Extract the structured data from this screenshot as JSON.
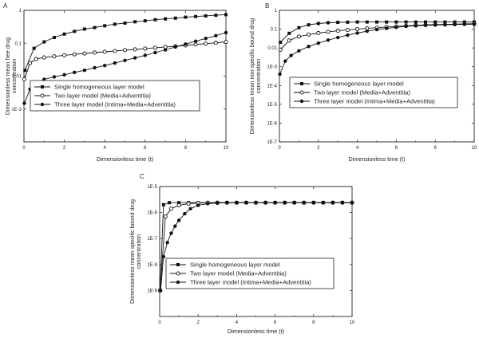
{
  "figure": {
    "panels": [
      "A",
      "B",
      "C"
    ],
    "colors": {
      "axis": "#222222",
      "series": "#111111",
      "marker_open_fill": "#ffffff",
      "background": "#ffffff"
    }
  },
  "chart_data": [
    {
      "type": "line",
      "panel": "A",
      "xlabel": "Dimensionless time (t)",
      "ylabel": [
        "Dimensionless mean free drug",
        "concentration"
      ],
      "xlim": [
        0,
        10
      ],
      "ylim": [
        0.0001,
        1
      ],
      "yscale": "log",
      "x_ticks": [
        0,
        2,
        4,
        6,
        8,
        10
      ],
      "y_ticks": [
        {
          "value": 1,
          "label": "1"
        },
        {
          "value": 0.1,
          "label": "0.1"
        },
        {
          "value": 0.01,
          "label": "0.01"
        },
        {
          "value": 0.001,
          "label": "1E-3"
        }
      ],
      "legend": {
        "position": "middle-left"
      },
      "series": [
        {
          "name": "Single homogeneous layer model",
          "marker": "square-filled",
          "x": [
            0.05,
            0.5,
            1,
            1.5,
            2,
            2.5,
            3,
            3.5,
            4,
            4.5,
            5,
            5.5,
            6,
            6.5,
            7,
            7.5,
            8,
            8.5,
            9,
            9.5,
            10
          ],
          "y": [
            0.015,
            0.07,
            0.11,
            0.15,
            0.19,
            0.23,
            0.27,
            0.3,
            0.34,
            0.38,
            0.41,
            0.45,
            0.48,
            0.52,
            0.55,
            0.58,
            0.62,
            0.65,
            0.68,
            0.71,
            0.74
          ]
        },
        {
          "name": "Two layer model (Media+Adventitia)",
          "marker": "circle-open",
          "x": [
            0.02,
            0.3,
            0.6,
            1,
            1.5,
            2,
            2.5,
            3,
            3.5,
            4,
            4.5,
            5,
            5.5,
            6,
            6.5,
            7,
            7.5,
            8,
            8.5,
            9,
            9.5,
            10
          ],
          "y": [
            0.008,
            0.025,
            0.033,
            0.037,
            0.04,
            0.043,
            0.046,
            0.049,
            0.052,
            0.055,
            0.058,
            0.062,
            0.065,
            0.069,
            0.073,
            0.077,
            0.081,
            0.086,
            0.092,
            0.097,
            0.103,
            0.11
          ]
        },
        {
          "name": "Three layer model  (Intima+Media+Adventitia)",
          "marker": "circle-filled",
          "x": [
            0.02,
            0.3,
            0.6,
            1,
            1.5,
            2,
            2.5,
            3,
            3.5,
            4,
            4.5,
            5,
            5.5,
            6,
            6.5,
            7,
            7.5,
            8,
            8.5,
            9,
            9.5,
            10
          ],
          "y": [
            0.0015,
            0.004,
            0.006,
            0.008,
            0.0095,
            0.011,
            0.013,
            0.015,
            0.018,
            0.021,
            0.025,
            0.03,
            0.036,
            0.043,
            0.052,
            0.063,
            0.077,
            0.094,
            0.115,
            0.14,
            0.17,
            0.21
          ]
        }
      ]
    },
    {
      "type": "line",
      "panel": "B",
      "xlabel": "Dimensionless time (t)",
      "ylabel": [
        "Dimensionless mean non-specific bound drug",
        "concentration"
      ],
      "xlim": [
        0,
        10
      ],
      "ylim": [
        1e-07,
        1
      ],
      "yscale": "log",
      "x_ticks": [
        0,
        2,
        4,
        6,
        8,
        10
      ],
      "y_ticks": [
        {
          "value": 1,
          "label": "1"
        },
        {
          "value": 0.1,
          "label": "0.1"
        },
        {
          "value": 0.01,
          "label": "0.01"
        },
        {
          "value": 0.001,
          "label": "1E-3"
        },
        {
          "value": 0.0001,
          "label": "1E-4"
        },
        {
          "value": 1e-05,
          "label": "1E-5"
        },
        {
          "value": 1e-06,
          "label": "1E-6"
        },
        {
          "value": 1e-07,
          "label": "1E-7"
        }
      ],
      "legend": {
        "position": "center"
      },
      "series": [
        {
          "name": "Single homogeneous layer model",
          "marker": "square-filled",
          "x": [
            0.05,
            0.5,
            1,
            1.5,
            2,
            2.5,
            3,
            3.5,
            4,
            4.5,
            5,
            5.5,
            6,
            6.5,
            7,
            7.5,
            8,
            8.5,
            9,
            9.5,
            10
          ],
          "y": [
            0.02,
            0.06,
            0.12,
            0.17,
            0.2,
            0.22,
            0.23,
            0.235,
            0.24,
            0.24,
            0.24,
            0.24,
            0.24,
            0.24,
            0.24,
            0.24,
            0.24,
            0.24,
            0.24,
            0.24,
            0.24
          ]
        },
        {
          "name": "Two layer model (Media+Adventitia)",
          "marker": "circle-open",
          "x": [
            0.05,
            0.5,
            1,
            1.5,
            2,
            2.5,
            3,
            3.5,
            4,
            4.5,
            5,
            5.5,
            6,
            6.5,
            7,
            7.5,
            8,
            8.5,
            9,
            9.5,
            10
          ],
          "y": [
            0.008,
            0.025,
            0.04,
            0.052,
            0.062,
            0.072,
            0.082,
            0.092,
            0.1,
            0.11,
            0.12,
            0.13,
            0.14,
            0.15,
            0.16,
            0.17,
            0.175,
            0.18,
            0.185,
            0.19,
            0.195
          ]
        },
        {
          "name": "Three layer model (Intima+Media+Adventitia)",
          "marker": "circle-filled",
          "x": [
            0.02,
            0.3,
            0.6,
            1,
            1.5,
            2,
            2.5,
            3,
            3.5,
            4,
            4.5,
            5,
            5.5,
            6,
            6.5,
            7,
            7.5,
            8,
            8.5,
            9,
            9.5,
            10
          ],
          "y": [
            0.0004,
            0.002,
            0.004,
            0.007,
            0.012,
            0.018,
            0.026,
            0.036,
            0.048,
            0.062,
            0.078,
            0.095,
            0.11,
            0.125,
            0.14,
            0.15,
            0.16,
            0.165,
            0.17,
            0.175,
            0.18,
            0.18
          ]
        }
      ]
    },
    {
      "type": "line",
      "panel": "C",
      "xlabel": "Dimensionless time (t)",
      "ylabel": [
        "Dimensionless mean specific bound drug",
        "concentration"
      ],
      "xlim": [
        0,
        10
      ],
      "ylim": [
        1e-10,
        1e-05
      ],
      "yscale": "log",
      "x_ticks": [
        0,
        2,
        4,
        6,
        8,
        10
      ],
      "y_ticks": [
        {
          "value": 1e-05,
          "label": "1E-5"
        },
        {
          "value": 1e-06,
          "label": "1E-6"
        },
        {
          "value": 1e-07,
          "label": "1E-7"
        },
        {
          "value": 1e-08,
          "label": "1E-8"
        },
        {
          "value": 1e-09,
          "label": "1E-9"
        }
      ],
      "legend": {
        "position": "lower-center"
      },
      "series": [
        {
          "name": "Single homogeneous layer model",
          "marker": "square-filled",
          "x": [
            0.02,
            0.2,
            0.5,
            1,
            1.5,
            2,
            2.5,
            3,
            3.5,
            4,
            4.5,
            5,
            5.5,
            6,
            6.5,
            7,
            7.5,
            8,
            8.5,
            9,
            9.5,
            10
          ],
          "y": [
            1e-09,
            2e-06,
            2.4e-06,
            2.4e-06,
            2.4e-06,
            2.4e-06,
            2.4e-06,
            2.4e-06,
            2.4e-06,
            2.4e-06,
            2.4e-06,
            2.4e-06,
            2.4e-06,
            2.4e-06,
            2.4e-06,
            2.4e-06,
            2.4e-06,
            2.4e-06,
            2.4e-06,
            2.4e-06,
            2.4e-06,
            2.4e-06
          ]
        },
        {
          "name": "Two layer model (Media+Adventitia)",
          "marker": "circle-open",
          "x": [
            0.02,
            0.3,
            0.6,
            1,
            1.5,
            2,
            2.5,
            3,
            3.5,
            4,
            4.5,
            5,
            5.5,
            6,
            6.5,
            7,
            7.5,
            8,
            8.5,
            9,
            9.5,
            10
          ],
          "y": [
            1e-09,
            7e-07,
            1.4e-06,
            1.9e-06,
            2.2e-06,
            2.3e-06,
            2.4e-06,
            2.4e-06,
            2.4e-06,
            2.4e-06,
            2.4e-06,
            2.4e-06,
            2.4e-06,
            2.4e-06,
            2.4e-06,
            2.4e-06,
            2.4e-06,
            2.4e-06,
            2.4e-06,
            2.4e-06,
            2.4e-06,
            2.4e-06
          ]
        },
        {
          "name": "Three layer model (Intima+Media+Adventitia)",
          "marker": "circle-filled",
          "x": [
            0.05,
            0.2,
            0.4,
            0.6,
            0.8,
            1,
            1.3,
            1.6,
            2,
            2.5,
            3,
            3.5,
            4,
            4.5,
            5,
            5.5,
            6,
            6.5,
            7,
            7.5,
            8,
            8.5,
            9,
            9.5,
            10
          ],
          "y": [
            1e-09,
            2e-08,
            7e-08,
            1.6e-07,
            3e-07,
            5e-07,
            9e-07,
            1.4e-06,
            1.9e-06,
            2.2e-06,
            2.3e-06,
            2.4e-06,
            2.4e-06,
            2.4e-06,
            2.4e-06,
            2.4e-06,
            2.4e-06,
            2.4e-06,
            2.4e-06,
            2.4e-06,
            2.4e-06,
            2.4e-06,
            2.4e-06,
            2.4e-06,
            2.4e-06
          ]
        }
      ]
    }
  ]
}
